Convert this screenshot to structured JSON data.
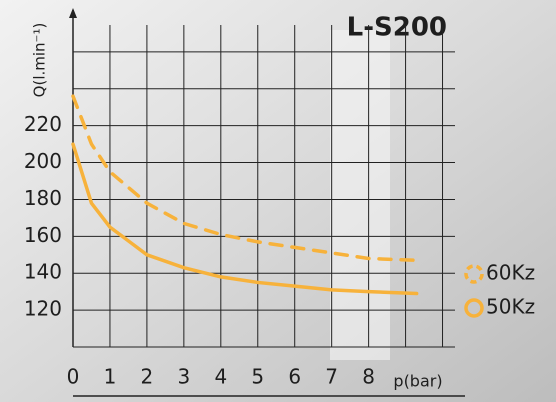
{
  "chart_data": {
    "type": "line",
    "title": "L-S200",
    "y_label": "Q(l.min⁻¹)",
    "x_label": "p(bar)",
    "x": [
      0,
      0.5,
      1,
      2,
      3,
      4,
      5,
      6,
      7,
      8,
      9.3
    ],
    "series": [
      {
        "name": "60Kz",
        "color": "#f7b23b",
        "dashed": true,
        "values": [
          236,
          210,
          195,
          178,
          167,
          161,
          157,
          154,
          151,
          148,
          147
        ]
      },
      {
        "name": "50Kz",
        "color": "#f7b23b",
        "dashed": false,
        "values": [
          210,
          178,
          165,
          150,
          143,
          138,
          135,
          133,
          131,
          130,
          129
        ]
      }
    ],
    "xlim": [
      0,
      10.5
    ],
    "ylim": [
      100,
      280
    ],
    "xticks": [
      0,
      1,
      2,
      3,
      4,
      5,
      6,
      7,
      8
    ],
    "yticks": [
      120,
      140,
      160,
      180,
      200,
      220
    ],
    "grid": true
  }
}
